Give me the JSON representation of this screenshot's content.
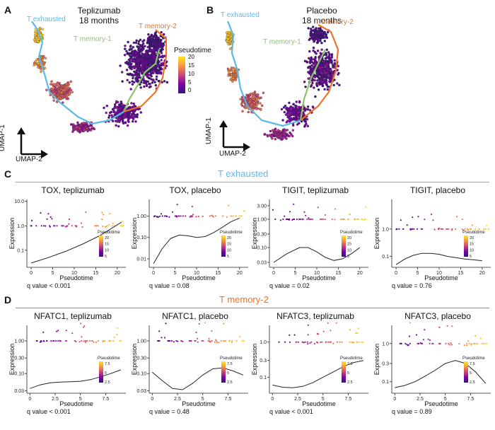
{
  "panelA": {
    "letter": "A",
    "title": [
      "Teplizumab",
      "18 months"
    ],
    "labels": {
      "exhausted": "T exhausted",
      "mem1": "T memory-1",
      "mem2": "T memory-2"
    },
    "axes": {
      "umap1": "UMAP-1",
      "umap2": "UMAP-2"
    }
  },
  "panelB": {
    "letter": "B",
    "title": [
      "Placebo",
      "18 months"
    ],
    "labels": {
      "exhausted": "T exhausted",
      "mem1": "T memory-1",
      "mem2": "T memory-2"
    },
    "axes": {
      "umap1": "UMAP-1",
      "umap2": "UMAP-2"
    }
  },
  "pseudotime_legend": {
    "title": "Pseudotime",
    "ticks": [
      "20",
      "15",
      "10",
      "5",
      "0"
    ]
  },
  "sectionC": {
    "letter": "C",
    "title": "T exhausted"
  },
  "sectionD": {
    "letter": "D",
    "title": "T memory-2"
  },
  "colors": {
    "exhausted": "#5bb8e8",
    "memory1": "#8cc56a",
    "memory2": "#e8732c",
    "gradient": [
      "#fde725",
      "#f89540",
      "#cc4778",
      "#7e03a8",
      "#2c1a77"
    ]
  },
  "chart_data": [
    {
      "type": "scatter",
      "title": "TOX, teplizumab",
      "xlabel": "Pseudotime",
      "ylabel": "Expression",
      "yscale": "log",
      "xticks": [
        "0",
        "5",
        "10",
        "15",
        "20"
      ],
      "xlim": [
        -1,
        22
      ],
      "yticks": [
        "0.1",
        "1.0",
        "10.0"
      ],
      "ylim": [
        0.02,
        12
      ],
      "legend": {
        "title": "Pseudotime",
        "ticks": [
          "20",
          "15",
          "10",
          "5"
        ]
      },
      "qvalue": "q value < 0.001",
      "curve": {
        "x": [
          0,
          4,
          8,
          12,
          16,
          20,
          21
        ],
        "y": [
          0.03,
          0.05,
          0.09,
          0.18,
          0.4,
          1.1,
          1.4
        ]
      }
    },
    {
      "type": "scatter",
      "title": "TOX, placebo",
      "xlabel": "Pseudotime",
      "ylabel": "Expression",
      "yscale": "log",
      "xticks": [
        "0",
        "5",
        "10",
        "15",
        "20"
      ],
      "xlim": [
        -1,
        22
      ],
      "yticks": [
        "0.01",
        "0.10",
        "1.00"
      ],
      "ylim": [
        0.004,
        6
      ],
      "legend": {
        "title": "Pseudotime",
        "ticks": [
          "20",
          "15",
          "10",
          "5"
        ]
      },
      "qvalue": "q value = 0.08",
      "curve": {
        "x": [
          0,
          2,
          4,
          6,
          8,
          10,
          12,
          14,
          16,
          18,
          20
        ],
        "y": [
          0.006,
          0.03,
          0.09,
          0.13,
          0.12,
          0.1,
          0.11,
          0.17,
          0.3,
          0.55,
          0.8
        ]
      }
    },
    {
      "type": "scatter",
      "title": "TIGIT, teplizumab",
      "xlabel": "Pseudotime",
      "ylabel": "Expression",
      "yscale": "log",
      "xticks": [
        "0",
        "5",
        "10",
        "15",
        "20"
      ],
      "xlim": [
        -1,
        22
      ],
      "yticks": [
        "0.03",
        "0.10",
        "0.30",
        "1.00",
        "3.00"
      ],
      "ylim": [
        0.02,
        5
      ],
      "legend": {
        "title": "Pseudotime",
        "ticks": [
          "20",
          "15",
          "10",
          "5"
        ]
      },
      "qvalue": "q value = 0.02",
      "curve": {
        "x": [
          0,
          3,
          6,
          8,
          10,
          12,
          14,
          16,
          18,
          20
        ],
        "y": [
          0.03,
          0.06,
          0.1,
          0.1,
          0.07,
          0.045,
          0.035,
          0.04,
          0.06,
          0.1
        ]
      }
    },
    {
      "type": "scatter",
      "title": "TIGIT, placebo",
      "xlabel": "Pseudotime",
      "ylabel": "Expression",
      "yscale": "log",
      "xticks": [
        "0",
        "5",
        "10",
        "15",
        "20"
      ],
      "xlim": [
        -1,
        22
      ],
      "yticks": [
        "0.1",
        "1.0"
      ],
      "ylim": [
        0.04,
        12
      ],
      "legend": {
        "title": "Pseudotime",
        "ticks": [
          "20",
          "15",
          "10",
          "5"
        ]
      },
      "qvalue": "q value = 0.76",
      "curve": {
        "x": [
          0,
          2,
          4,
          6,
          8,
          10,
          12,
          14,
          16,
          18,
          20
        ],
        "y": [
          0.05,
          0.08,
          0.11,
          0.13,
          0.13,
          0.12,
          0.1,
          0.09,
          0.08,
          0.075,
          0.07
        ]
      }
    },
    {
      "type": "scatter",
      "title": "NFATC1, teplizumab",
      "xlabel": "Pseudotime",
      "ylabel": "Expression",
      "yscale": "log",
      "xticks": [
        "0",
        "2.5",
        "5",
        "7.5"
      ],
      "xlim": [
        -0.3,
        9.5
      ],
      "yticks": [
        "0.03",
        "0.10",
        "0.30",
        "1.00"
      ],
      "ylim": [
        0.025,
        3
      ],
      "legend": {
        "title": "Pseudotime",
        "ticks": [
          "7.5",
          "5",
          "2.5"
        ]
      },
      "qvalue": "q value < 0.001",
      "curve": {
        "x": [
          0,
          1,
          2,
          3,
          4,
          5,
          6,
          7,
          8,
          9
        ],
        "y": [
          0.035,
          0.045,
          0.052,
          0.055,
          0.056,
          0.058,
          0.065,
          0.08,
          0.1,
          0.13
        ]
      }
    },
    {
      "type": "scatter",
      "title": "NFATC1, placebo",
      "xlabel": "Pseudotime",
      "ylabel": "Expression",
      "yscale": "log",
      "xticks": [
        "0",
        "2.5",
        "5",
        "7.5"
      ],
      "xlim": [
        -0.3,
        9.5
      ],
      "yticks": [
        "0.03",
        "0.10",
        "0.30",
        "1.00"
      ],
      "ylim": [
        0.025,
        3
      ],
      "legend": {
        "title": "Pseudotime",
        "ticks": [
          "7.5",
          "5",
          "2.5"
        ]
      },
      "qvalue": "q value = 0.48",
      "curve": {
        "x": [
          0,
          1,
          2,
          3,
          4,
          5,
          6,
          7,
          8,
          9
        ],
        "y": [
          0.11,
          0.06,
          0.035,
          0.032,
          0.05,
          0.09,
          0.14,
          0.15,
          0.12,
          0.09
        ]
      }
    },
    {
      "type": "scatter",
      "title": "NFATC3, teplizumab",
      "xlabel": "Pseudotime",
      "ylabel": "Expression",
      "yscale": "log",
      "xticks": [
        "0",
        "2.5",
        "5",
        "7.5"
      ],
      "xlim": [
        -0.3,
        9.5
      ],
      "yticks": [
        "0.1",
        "0.3",
        "1.0"
      ],
      "ylim": [
        0.035,
        3
      ],
      "legend": {
        "title": "Pseudotime",
        "ticks": [
          "7.5",
          "5",
          "2.5"
        ]
      },
      "qvalue": "q value < 0.001",
      "curve": {
        "x": [
          0,
          1,
          2,
          3,
          4,
          5,
          6,
          7,
          8,
          9
        ],
        "y": [
          0.06,
          0.052,
          0.05,
          0.055,
          0.07,
          0.1,
          0.14,
          0.2,
          0.26,
          0.3
        ]
      }
    },
    {
      "type": "scatter",
      "title": "NFATC3, placebo",
      "xlabel": "Pseudotime",
      "ylabel": "Expression",
      "yscale": "log",
      "xticks": [
        "0",
        "2.5",
        "5",
        "7.5"
      ],
      "xlim": [
        -0.3,
        9.5
      ],
      "yticks": [
        "0.1",
        "0.3",
        "1.0"
      ],
      "ylim": [
        0.05,
        3
      ],
      "legend": {
        "title": "Pseudotime",
        "ticks": [
          "7.5",
          "5",
          "2.5"
        ]
      },
      "qvalue": "q value = 0.89",
      "curve": {
        "x": [
          0,
          1,
          2,
          3,
          4,
          5,
          6,
          7,
          8,
          9
        ],
        "y": [
          0.07,
          0.08,
          0.1,
          0.14,
          0.2,
          0.3,
          0.36,
          0.3,
          0.18,
          0.09
        ]
      }
    }
  ]
}
